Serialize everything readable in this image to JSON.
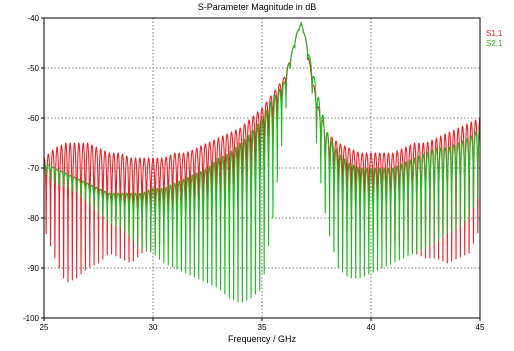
{
  "chart_data": {
    "type": "line",
    "title": "S-Parameter Magnitude in dB",
    "xlabel": "Frequency / GHz",
    "ylabel": "",
    "xlim": [
      25,
      45
    ],
    "ylim": [
      -100,
      -40
    ],
    "x_ticks": [
      25,
      30,
      35,
      40,
      45
    ],
    "y_ticks": [
      -40,
      -50,
      -60,
      -70,
      -80,
      -90,
      -100
    ],
    "grid": true,
    "legend_position": "top-right",
    "series": [
      {
        "name": "S1,1",
        "color": "#e8252a",
        "x": [
          25,
          25.5,
          26,
          26.5,
          27,
          27.5,
          28,
          28.5,
          29,
          29.5,
          30,
          30.5,
          31,
          31.5,
          32,
          32.5,
          33,
          33.5,
          34,
          34.5,
          35,
          35.5,
          36,
          36.3,
          36.6,
          36.8,
          37,
          37.3,
          37.6,
          38,
          38.5,
          39,
          39.5,
          40,
          40.5,
          41,
          41.5,
          42,
          42.5,
          43,
          43.5,
          44,
          44.5,
          45
        ],
        "upper": [
          -68,
          -66,
          -65,
          -65,
          -65,
          -66,
          -67,
          -67,
          -68,
          -68,
          -68,
          -68,
          -67,
          -67,
          -66,
          -65,
          -64,
          -63,
          -62,
          -60,
          -58,
          -55,
          -52,
          -48,
          -43,
          -41,
          -44,
          -52,
          -58,
          -63,
          -65,
          -66,
          -67,
          -67,
          -67,
          -67,
          -66,
          -65,
          -65,
          -64,
          -63,
          -62,
          -61,
          -60
        ],
        "lower": [
          -82,
          -88,
          -93,
          -92,
          -90,
          -89,
          -87,
          -88,
          -89,
          -87,
          -86,
          -85,
          -84,
          -84,
          -83,
          -82,
          -82,
          -80,
          -79,
          -76,
          -72,
          -66,
          -58,
          -50,
          -44,
          -41,
          -45,
          -55,
          -66,
          -74,
          -78,
          -80,
          -82,
          -83,
          -84,
          -85,
          -86,
          -87,
          -88,
          -88,
          -89,
          -88,
          -87,
          -82
        ]
      },
      {
        "name": "S2,1",
        "color": "#22b822",
        "x": [
          25,
          25.5,
          26,
          26.5,
          27,
          27.5,
          28,
          28.5,
          29,
          29.5,
          30,
          30.5,
          31,
          31.5,
          32,
          32.5,
          33,
          33.5,
          34,
          34.5,
          35,
          35.5,
          36,
          36.3,
          36.6,
          36.8,
          37,
          37.3,
          37.6,
          38,
          38.5,
          39,
          39.5,
          40,
          40.5,
          41,
          41.5,
          42,
          42.5,
          43,
          43.5,
          44,
          44.5,
          45
        ],
        "upper": [
          -69,
          -70,
          -71,
          -72,
          -73,
          -74,
          -75,
          -75,
          -75,
          -75,
          -74,
          -74,
          -73,
          -72,
          -71,
          -70,
          -68,
          -67,
          -65,
          -63,
          -60,
          -56,
          -53,
          -48,
          -43,
          -41,
          -44,
          -50,
          -56,
          -63,
          -67,
          -69,
          -70,
          -70,
          -70,
          -70,
          -69,
          -68,
          -67,
          -66,
          -66,
          -65,
          -64,
          -62
        ],
        "lower": [
          -71,
          -73,
          -74,
          -75,
          -77,
          -79,
          -81,
          -82,
          -84,
          -86,
          -87,
          -89,
          -90,
          -91,
          -92,
          -93,
          -94,
          -96,
          -97,
          -96,
          -94,
          -80,
          -62,
          -50,
          -44,
          -41,
          -45,
          -55,
          -70,
          -82,
          -90,
          -92,
          -92,
          -91,
          -90,
          -89,
          -88,
          -87,
          -86,
          -85,
          -83,
          -82,
          -80,
          -75
        ]
      }
    ]
  }
}
